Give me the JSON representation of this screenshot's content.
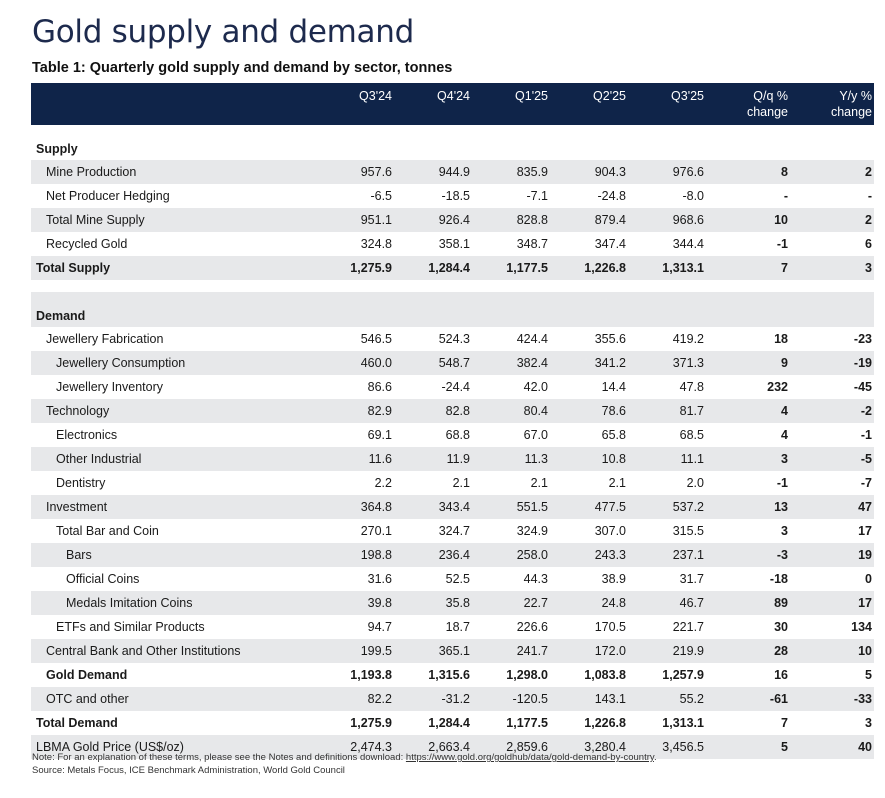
{
  "title": "Gold supply and demand",
  "subtitle": "Table 1: Quarterly gold supply and demand by sector, tonnes",
  "columns": [
    "Q3'24",
    "Q4'24",
    "Q1'25",
    "Q2'25",
    "Q3'25",
    "Q/q %",
    "change",
    "Y/y %",
    "change"
  ],
  "supply_header": "Supply",
  "demand_header": "Demand",
  "supply_rows": [
    {
      "label": "Mine Production",
      "values": [
        "957.6",
        "944.9",
        "835.9",
        "904.3",
        "976.6",
        "8",
        "2"
      ]
    },
    {
      "label": "Net Producer Hedging",
      "values": [
        "-6.5",
        "-18.5",
        "-7.1",
        "-24.8",
        "-8.0",
        "-",
        "-"
      ]
    },
    {
      "label": "Total Mine Supply",
      "values": [
        "951.1",
        "926.4",
        "828.8",
        "879.4",
        "968.6",
        "10",
        "2"
      ]
    },
    {
      "label": "Recycled Gold",
      "values": [
        "324.8",
        "358.1",
        "348.7",
        "347.4",
        "344.4",
        "-1",
        "6"
      ]
    },
    {
      "label": "Total Supply",
      "values": [
        "1,275.9",
        "1,284.4",
        "1,177.5",
        "1,226.8",
        "1,313.1",
        "7",
        "3"
      ]
    }
  ],
  "demand_rows": [
    {
      "label": "Jewellery Fabrication",
      "values": [
        "546.5",
        "524.3",
        "424.4",
        "355.6",
        "419.2",
        "18",
        "-23"
      ]
    },
    {
      "label": "Jewellery Consumption",
      "values": [
        "460.0",
        "548.7",
        "382.4",
        "341.2",
        "371.3",
        "9",
        "-19"
      ]
    },
    {
      "label": "Jewellery Inventory",
      "values": [
        "86.6",
        "-24.4",
        "42.0",
        "14.4",
        "47.8",
        "232",
        "-45"
      ]
    },
    {
      "label": "Technology",
      "values": [
        "82.9",
        "82.8",
        "80.4",
        "78.6",
        "81.7",
        "4",
        "-2"
      ]
    },
    {
      "label": "Electronics",
      "values": [
        "69.1",
        "68.8",
        "67.0",
        "65.8",
        "68.5",
        "4",
        "-1"
      ]
    },
    {
      "label": "Other Industrial",
      "values": [
        "11.6",
        "11.9",
        "11.3",
        "10.8",
        "11.1",
        "3",
        "-5"
      ]
    },
    {
      "label": "Dentistry",
      "values": [
        "2.2",
        "2.1",
        "2.1",
        "2.1",
        "2.0",
        "-1",
        "-7"
      ]
    },
    {
      "label": "Investment",
      "values": [
        "364.8",
        "343.4",
        "551.5",
        "477.5",
        "537.2",
        "13",
        "47"
      ]
    },
    {
      "label": "Total Bar and Coin",
      "values": [
        "270.1",
        "324.7",
        "324.9",
        "307.0",
        "315.5",
        "3",
        "17"
      ]
    },
    {
      "label": "Bars",
      "values": [
        "198.8",
        "236.4",
        "258.0",
        "243.3",
        "237.1",
        "-3",
        "19"
      ]
    },
    {
      "label": "Official Coins",
      "values": [
        "31.6",
        "52.5",
        "44.3",
        "38.9",
        "31.7",
        "-18",
        "0"
      ]
    },
    {
      "label": "Medals Imitation Coins",
      "values": [
        "39.8",
        "35.8",
        "22.7",
        "24.8",
        "46.7",
        "89",
        "17"
      ]
    },
    {
      "label": "ETFs and Similar Products",
      "values": [
        "94.7",
        "18.7",
        "226.6",
        "170.5",
        "221.7",
        "30",
        "134"
      ]
    },
    {
      "label": "Central Bank and Other Institutions",
      "values": [
        "199.5",
        "365.1",
        "241.7",
        "172.0",
        "219.9",
        "28",
        "10"
      ]
    },
    {
      "label": "Gold Demand",
      "values": [
        "1,193.8",
        "1,315.6",
        "1,298.0",
        "1,083.8",
        "1,257.9",
        "16",
        "5"
      ]
    },
    {
      "label": "OTC and other",
      "values": [
        "82.2",
        "-31.2",
        "-120.5",
        "143.1",
        "55.2",
        "-61",
        "-33"
      ]
    },
    {
      "label": "Total Demand",
      "values": [
        "1,275.9",
        "1,284.4",
        "1,177.5",
        "1,226.8",
        "1,313.1",
        "7",
        "3"
      ]
    },
    {
      "label": "LBMA Gold Price (US$/oz)",
      "values": [
        "2,474.3",
        "2,663.4",
        "2,859.6",
        "3,280.4",
        "3,456.5",
        "5",
        "40"
      ]
    }
  ],
  "note": {
    "prefix": "Note: For an explanation of these terms, please see the Notes and definitions download: ",
    "link": "https://www.gold.org/goldhub/data/gold-demand-by-country",
    "suffix": ".",
    "source": "Source: Metals Focus, ICE Benchmark Administration, World Gold Council"
  }
}
